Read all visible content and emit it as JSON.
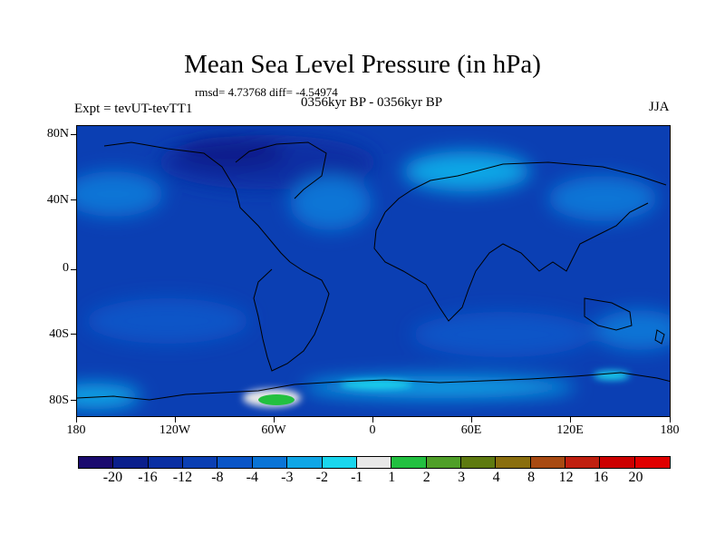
{
  "title": "Mean Sea Level Pressure (in hPa)",
  "stats": "rmsd= 4.73768  diff= -4.54974",
  "subtitle": "0356kyr BP - 0356kyr BP",
  "experiment": "Expt = tevUT-tevTT1",
  "season": "JJA",
  "lat_labels": [
    "80N",
    "40N",
    "0",
    "40S",
    "80S"
  ],
  "lon_labels": [
    "180",
    "120W",
    "60W",
    "0",
    "60E",
    "120E",
    "180"
  ],
  "colorbar": {
    "levels": [
      "-20",
      "-16",
      "-12",
      "-8",
      "-4",
      "-3",
      "-2",
      "-1",
      "1",
      "2",
      "3",
      "4",
      "8",
      "12",
      "16",
      "20"
    ],
    "colors": [
      "#1a0a6e",
      "#0b1f8c",
      "#0a2fa3",
      "#0b3fb3",
      "#0a55c7",
      "#0a74d6",
      "#10a6e6",
      "#1ad6ee",
      "#e8e8e8",
      "#22c040",
      "#4f9f28",
      "#5e7a10",
      "#8a6e0e",
      "#a84a12",
      "#c02010",
      "#cc0000",
      "#e00000"
    ]
  },
  "map": {
    "base_color": "#0b3fb3",
    "anomaly_fields": [
      {
        "name": "arctic-low",
        "lon": -70,
        "lat": 70,
        "value": -12
      },
      {
        "name": "north-pacific",
        "lon": -150,
        "lat": 35,
        "value": -3
      },
      {
        "name": "north-atlantic",
        "lon": -35,
        "lat": 45,
        "value": -4
      },
      {
        "name": "eurasia-band",
        "lon": 40,
        "lat": 60,
        "value": -3
      },
      {
        "name": "east-asia",
        "lon": 125,
        "lat": 40,
        "value": -3
      },
      {
        "name": "south-pacific",
        "lon": -140,
        "lat": -40,
        "value": -4
      },
      {
        "name": "south-indian",
        "lon": 80,
        "lat": -40,
        "value": -4
      },
      {
        "name": "tasman",
        "lon": 160,
        "lat": -45,
        "value": -4
      },
      {
        "name": "antarctic-ross",
        "lon": -170,
        "lat": -78,
        "value": -1
      },
      {
        "name": "antarctic-peninsula",
        "lon": -70,
        "lat": -80,
        "value": 2
      },
      {
        "name": "antarctic-east",
        "lon": 90,
        "lat": -72,
        "value": -1
      }
    ]
  }
}
